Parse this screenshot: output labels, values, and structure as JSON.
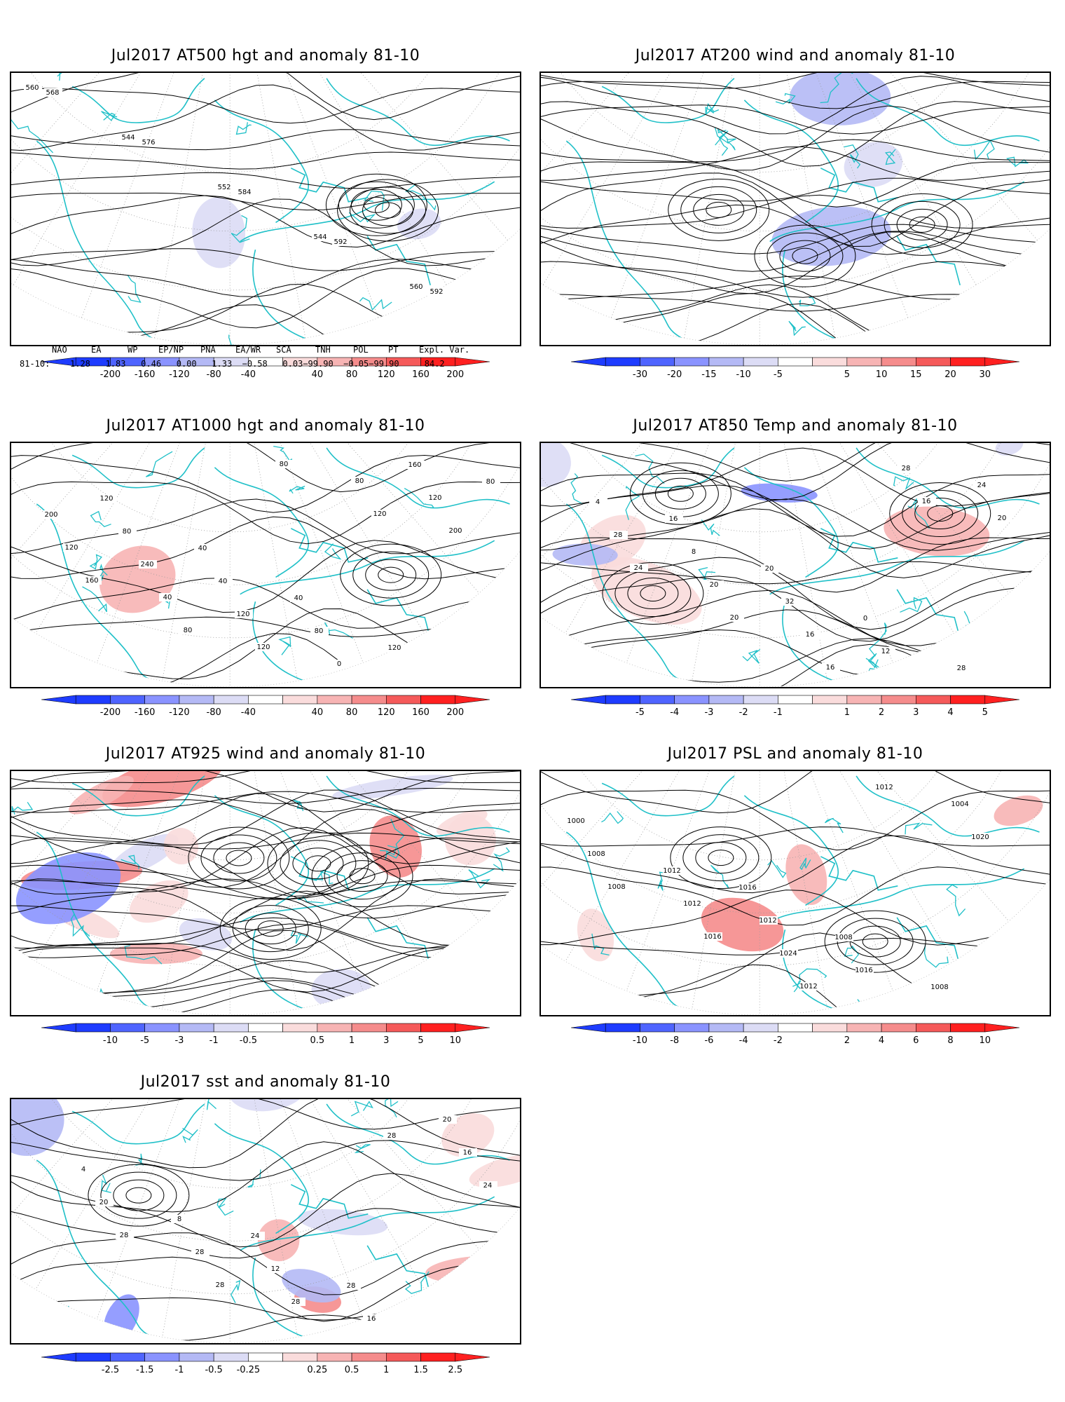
{
  "panels": [
    {
      "id": "p1",
      "title": "Jul2017 AT500 hgt and anomaly 81-10",
      "colorbar": {
        "labels": [
          "-200",
          "-160",
          "-120",
          "-80",
          "-40",
          "40",
          "80",
          "120",
          "160",
          "200"
        ]
      },
      "contour_labels": [
        "560",
        "544",
        "552",
        "544",
        "560",
        "568",
        "576",
        "584",
        "592",
        "592"
      ]
    },
    {
      "id": "p2",
      "title": "Jul2017 AT200 wind and anomaly 81-10",
      "colorbar": {
        "labels": [
          "-30",
          "-20",
          "-15",
          "-10",
          "-5",
          "5",
          "10",
          "15",
          "20",
          "30"
        ]
      },
      "contour_labels": []
    },
    {
      "id": "p3",
      "title": "Jul2017 AT1000 hgt and anomaly 81-10",
      "colorbar": {
        "labels": [
          "-200",
          "-160",
          "-120",
          "-80",
          "-40",
          "40",
          "80",
          "120",
          "160",
          "200"
        ]
      },
      "contour_labels": [
        "120",
        "40",
        "40",
        "120",
        "80",
        "80",
        "40",
        "80",
        "160",
        "200",
        "240",
        "120",
        "0",
        "120",
        "120",
        "40",
        "120",
        "80",
        "200",
        "160",
        "80",
        "80",
        "120"
      ]
    },
    {
      "id": "p4",
      "title": "Jul2017 AT850 Temp and anomaly 81-10",
      "colorbar": {
        "labels": [
          "-5",
          "-4",
          "-3",
          "-2",
          "-1",
          "1",
          "2",
          "3",
          "4",
          "5"
        ]
      },
      "contour_labels": [
        "16",
        "20",
        "0",
        "28",
        "4",
        "8",
        "32",
        "12",
        "24",
        "28",
        "20",
        "16",
        "28",
        "20",
        "24",
        "20",
        "16",
        "16"
      ]
    },
    {
      "id": "p5",
      "title": "Jul2017 AT925 wind and anomaly 81-10",
      "colorbar": {
        "labels": [
          "-10",
          "-5",
          "-3",
          "-1",
          "-0.5",
          "0.5",
          "1",
          "3",
          "5",
          "10"
        ]
      },
      "contour_labels": []
    },
    {
      "id": "p6",
      "title": "Jul2017 PSL and anomaly 81-10",
      "colorbar": {
        "labels": [
          "-10",
          "-8",
          "-6",
          "-4",
          "-2",
          "2",
          "4",
          "6",
          "8",
          "10"
        ]
      },
      "contour_labels": [
        "1016",
        "1008",
        "1008",
        "1000",
        "1012",
        "1012",
        "1016",
        "1004",
        "1008",
        "1012",
        "1024",
        "1012",
        "1020",
        "1008",
        "1016",
        "1012"
      ]
    },
    {
      "id": "p7",
      "title": "Jul2017 sst and anomaly 81-10",
      "colorbar": {
        "labels": [
          "-2.5",
          "-1.5",
          "-1",
          "-0.5",
          "-0.25",
          "0.25",
          "0.5",
          "1",
          "1.5",
          "2.5"
        ]
      },
      "contour_labels": [
        "24",
        "28",
        "20",
        "4",
        "8",
        "12",
        "16",
        "16",
        "20",
        "28",
        "28",
        "28",
        "24",
        "28",
        "28"
      ]
    }
  ],
  "teleconnection": {
    "headers": [
      "NAO",
      "EA",
      "WP",
      "EP/NP",
      "PNA",
      "EA/WR",
      "SCA",
      "TNH",
      "POL",
      "PT",
      "Expl. Var."
    ],
    "row_label": "81-10:",
    "values": "1.28   1.83   0.46   0.00   1.33  −0.58   0.03−99.90  −0.05−99.90     84.2"
  },
  "colors": {
    "coast": "#20c0c8",
    "contour": "#000000",
    "grid": "#9a9a9a",
    "neg": [
      "#1e3cff",
      "#4f64ff",
      "#8a93ff",
      "#b4b9f5",
      "#dcdcf5"
    ],
    "pos": [
      "#fadcdc",
      "#f7b4b4",
      "#f58c8c",
      "#f55a5a",
      "#ff2020"
    ]
  }
}
